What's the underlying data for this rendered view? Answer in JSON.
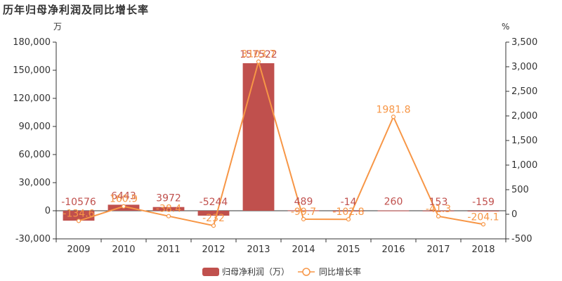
{
  "chart_data": {
    "type": "bar+line",
    "title": "历年归母净利润及同比增长率",
    "categories": [
      "2009",
      "2010",
      "2011",
      "2012",
      "2013",
      "2014",
      "2015",
      "2016",
      "2017",
      "2018"
    ],
    "left_axis": {
      "unit": "万",
      "ylim": [
        -30000,
        180000
      ],
      "ticks": [
        -30000,
        0,
        30000,
        60000,
        90000,
        120000,
        150000,
        180000
      ],
      "tick_labels": [
        "-30,000",
        "0",
        "30,000",
        "60,000",
        "90,000",
        "120,000",
        "150,000",
        "180,000"
      ]
    },
    "right_axis": {
      "unit": "%",
      "ylim": [
        -500,
        3500
      ],
      "ticks": [
        -500,
        0,
        500,
        1000,
        1500,
        2000,
        2500,
        3000,
        3500
      ],
      "tick_labels": [
        "-500",
        "0",
        "500",
        "1,000",
        "1,500",
        "2,000",
        "2,500",
        "3,000",
        "3,500"
      ]
    },
    "series": [
      {
        "name": "归母净利润（万）",
        "kind": "bar",
        "axis": "left",
        "color": "#c0504d",
        "values": [
          -10576,
          6443,
          3972,
          -5244,
          157522,
          489,
          -14,
          260,
          153,
          -159
        ],
        "labels": [
          "-10576",
          "6443",
          "3972",
          "-5244",
          "157522",
          "489",
          "-14",
          "260",
          "153",
          "-159"
        ]
      },
      {
        "name": "同比增长率",
        "kind": "line",
        "axis": "right",
        "color": "#f79646",
        "values": [
          -134.6,
          160.9,
          -38.4,
          -232,
          3103.7,
          -99.7,
          -102.8,
          1981.8,
          -41.3,
          -204.1
        ],
        "labels": [
          "-134.6",
          "160.9",
          "-38.4",
          "-232",
          "3103.7",
          "-99.7",
          "-102.8",
          "1981.8",
          "-41.3",
          "-204.1"
        ]
      }
    ],
    "grid": false,
    "legend_position": "bottom"
  }
}
